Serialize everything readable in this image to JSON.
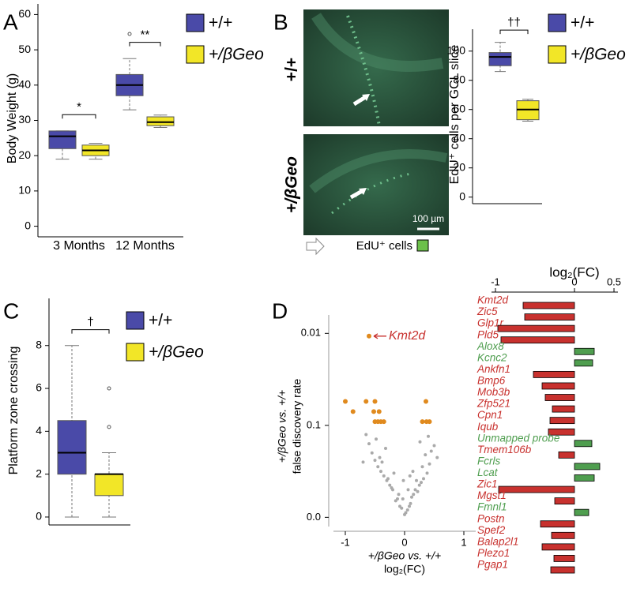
{
  "chart_data": [
    {
      "type": "box",
      "panel_label": "A",
      "ylabel": "Body Weight (g)",
      "categories": [
        "3 Months",
        "12 Months"
      ],
      "series": [
        {
          "name": "+/+",
          "color": "#4a4aa8",
          "boxes": [
            {
              "min": 19,
              "q1": 22,
              "median": 25.5,
              "q3": 27,
              "max": 27,
              "outliers": []
            },
            {
              "min": 33,
              "q1": 37,
              "median": 40,
              "q3": 43,
              "max": 47.5,
              "outliers": [
                54.5
              ]
            }
          ]
        },
        {
          "name": "+/βGeo",
          "color": "#f2e627",
          "boxes": [
            {
              "min": 19,
              "q1": 20,
              "median": 21.5,
              "q3": 23,
              "max": 23.5,
              "outliers": []
            },
            {
              "min": 28,
              "q1": 28.5,
              "median": 29.5,
              "q3": 31,
              "max": 31.5,
              "outliers": []
            }
          ]
        }
      ],
      "annotations": [
        "*",
        "**"
      ],
      "ylim": [
        -3,
        63
      ],
      "yticks": [
        0,
        10,
        20,
        30,
        40,
        50,
        60
      ]
    },
    {
      "type": "box",
      "panel_label": "B",
      "ylabel": "EdU⁺ cells per GCL slice",
      "image_labels": [
        "+/+",
        "+/βGeo"
      ],
      "scale_bar": "100 µm",
      "stain_label": "EdU⁺ cells",
      "series": [
        {
          "name": "+/+",
          "color": "#4a4aa8",
          "boxes": [
            {
              "min": 86,
              "q1": 90,
              "median": 96,
              "q3": 99,
              "max": 106,
              "outliers": []
            }
          ]
        },
        {
          "name": "+/βGeo",
          "color": "#f2e627",
          "boxes": [
            {
              "min": 52,
              "q1": 53,
              "median": 60,
              "q3": 66,
              "max": 67,
              "outliers": []
            }
          ]
        }
      ],
      "annotations": [
        "††"
      ],
      "ylim": [
        -4.5,
        115
      ],
      "yticks": [
        0,
        20,
        40,
        60,
        80,
        100
      ]
    },
    {
      "type": "box",
      "panel_label": "C",
      "ylabel": "Platform zone crossing",
      "series": [
        {
          "name": "+/+",
          "color": "#4a4aa8",
          "boxes": [
            {
              "min": 0,
              "q1": 2,
              "median": 3,
              "q3": 4.5,
              "max": 8,
              "outliers": []
            }
          ]
        },
        {
          "name": "+/βGeo",
          "color": "#f2e627",
          "boxes": [
            {
              "min": 0,
              "q1": 1,
              "median": 2,
              "q3": 2,
              "max": 3,
              "outliers": [
                4.2,
                6
              ]
            }
          ]
        }
      ],
      "annotations": [
        "†"
      ],
      "ylim": [
        -0.37,
        10.2
      ],
      "yticks": [
        0,
        2,
        4,
        6,
        8
      ]
    },
    {
      "type": "scatter",
      "panel_label": "D",
      "xlabel": [
        "+/βGeo vs. +/+",
        "log₂(FC)"
      ],
      "ylabel": [
        "+/βGeo vs. +/+",
        "false discovery rate"
      ],
      "series": [
        {
          "color": "#aaaaaa",
          "x": [
            0.02,
            -0.05,
            0.08,
            -0.12,
            0.15,
            -0.2,
            0.22,
            -0.25,
            0.28,
            -0.3,
            0.1,
            -0.15,
            0.05,
            -0.08,
            0.18,
            -0.35,
            0.32,
            -0.4,
            0.38,
            -0.45,
            0.25,
            -0.22,
            0.12,
            -0.1,
            0.0,
            -0.28,
            0.2,
            -0.5,
            0.42,
            -0.55,
            0.3,
            -0.38,
            0.45,
            -0.6,
            0.5,
            -0.18,
            0.06,
            -0.03,
            0.14,
            -0.42,
            0.35,
            -0.32,
            0.26,
            -0.48,
            0.4,
            -0.65,
            -0.7,
            0.55,
            -0.02,
            0.09
          ],
          "y": [
            0.05,
            0.1,
            0.12,
            0.2,
            0.25,
            0.3,
            0.28,
            0.35,
            0.38,
            0.4,
            0.15,
            0.18,
            0.08,
            0.12,
            0.3,
            0.45,
            0.42,
            0.5,
            0.48,
            0.55,
            0.35,
            0.32,
            0.22,
            0.25,
            0.03,
            0.42,
            0.4,
            0.62,
            0.58,
            0.7,
            0.55,
            0.6,
            0.72,
            0.8,
            0.78,
            0.48,
            0.3,
            0.2,
            0.5,
            0.65,
            0.68,
            0.75,
            0.82,
            0.85,
            0.88,
            0.9,
            0.6,
            0.65,
            0.4,
            0.45
          ]
        },
        {
          "color": "#e08a1e",
          "x": [
            -1.0,
            -0.87,
            -0.65,
            -0.5,
            -0.52,
            -0.43,
            -0.5,
            -0.45,
            -0.4,
            -0.35,
            0.3,
            0.37,
            0.36,
            0.42
          ],
          "y": [
            1.26,
            1.15,
            1.26,
            1.26,
            1.15,
            1.15,
            1.04,
            1.04,
            1.04,
            1.04,
            1.04,
            1.04,
            1.26,
            1.04
          ]
        }
      ],
      "annotations": [
        {
          "text": "Kmt2d",
          "x": -0.6,
          "y": 1.97,
          "color": "#c8312e"
        }
      ],
      "xlim": [
        -1.2,
        1.2
      ],
      "xticks": [
        -1,
        0,
        1
      ],
      "ylim": [
        -0.1,
        2.2
      ],
      "yticks": [
        {
          "value": 2,
          "label": "0.01"
        },
        {
          "value": 1,
          "label": "0.1"
        },
        {
          "value": 0,
          "label": "0.0"
        }
      ]
    },
    {
      "type": "hbar",
      "title": "log₂(FC)",
      "categories": [
        "Kmt2d",
        "Zic5",
        "Glp1r",
        "Pld5",
        "Alox8",
        "Kcnc2",
        "Ankfn1",
        "Bmp6",
        "Mob3b",
        "Zfp521",
        "Cpn1",
        "Iqub",
        "Unmapped probe",
        "Tmem106b",
        "Fcrls",
        "Lcat",
        "Zic1",
        "Mgst1",
        "Fmnl1",
        "Postn",
        "Spef2",
        "Balap2l1",
        "Plezo1",
        "Pgap1"
      ],
      "values": [
        -0.65,
        -0.63,
        -0.97,
        -0.93,
        0.25,
        0.23,
        -0.52,
        -0.41,
        -0.37,
        -0.28,
        -0.31,
        -0.33,
        0.22,
        -0.2,
        0.32,
        0.25,
        -0.96,
        -0.25,
        0.18,
        -0.43,
        -0.29,
        -0.41,
        -0.26,
        -0.3
      ],
      "colors": [
        "#c8312e",
        "#c8312e",
        "#c8312e",
        "#c8312e",
        "#4f9e4f",
        "#4f9e4f",
        "#c8312e",
        "#c8312e",
        "#c8312e",
        "#c8312e",
        "#c8312e",
        "#c8312e",
        "#4f9e4f",
        "#c8312e",
        "#4f9e4f",
        "#4f9e4f",
        "#c8312e",
        "#c8312e",
        "#4f9e4f",
        "#c8312e",
        "#c8312e",
        "#c8312e",
        "#c8312e",
        "#c8312e"
      ],
      "xlim": [
        -1.05,
        0.55
      ],
      "xticks": [
        -1,
        0,
        0.5
      ]
    }
  ]
}
